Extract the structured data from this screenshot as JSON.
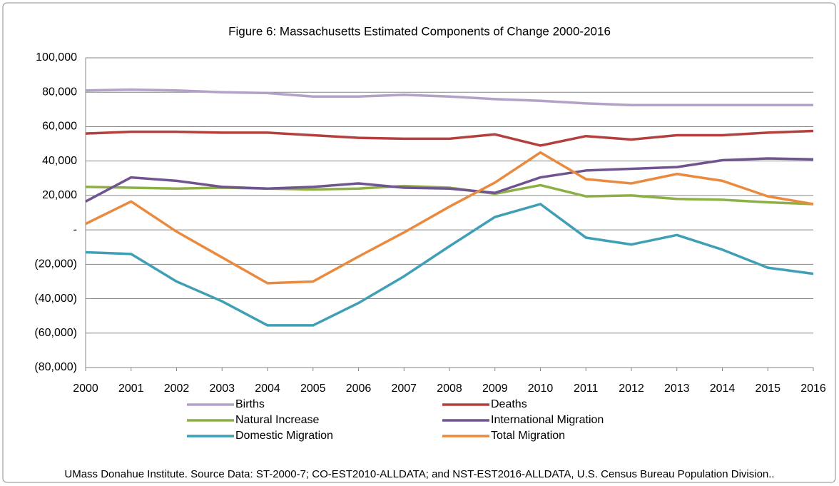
{
  "chart_data": {
    "type": "line",
    "title": "Figure 6:  Massachusetts Estimated Components of Change 2000-2016",
    "source": "UMass Donahue Institute. Source Data: ST-2000-7; CO-EST2010-ALLDATA; and NST-EST2016-ALLDATA, U.S. Census Bureau Population Division..",
    "x": [
      2000,
      2001,
      2002,
      2003,
      2004,
      2005,
      2006,
      2007,
      2008,
      2009,
      2010,
      2011,
      2012,
      2013,
      2014,
      2015,
      2016
    ],
    "xlim": [
      2000,
      2016
    ],
    "xticks": [
      2000,
      2001,
      2002,
      2003,
      2004,
      2005,
      2006,
      2007,
      2008,
      2009,
      2010,
      2011,
      2012,
      2013,
      2014,
      2015,
      2016
    ],
    "ylim": [
      -80000,
      100000
    ],
    "yticks": [
      {
        "value": -80000,
        "label": "(80,000)"
      },
      {
        "value": -60000,
        "label": "(60,000)"
      },
      {
        "value": -40000,
        "label": "(40,000)"
      },
      {
        "value": -20000,
        "label": "(20,000)"
      },
      {
        "value": 0,
        "label": "-"
      },
      {
        "value": 20000,
        "label": "20,000"
      },
      {
        "value": 40000,
        "label": "40,000"
      },
      {
        "value": 60000,
        "label": "60,000"
      },
      {
        "value": 80000,
        "label": "80,000"
      },
      {
        "value": 100000,
        "label": "100,000"
      }
    ],
    "grid": true,
    "legend": "bottom",
    "series": [
      {
        "name": "Births",
        "color": "#b3a2c7",
        "values": [
          81000,
          81500,
          81000,
          80000,
          79500,
          77500,
          77500,
          78500,
          77500,
          76000,
          75000,
          73500,
          72500,
          72500,
          72500,
          72500,
          72500
        ]
      },
      {
        "name": "Deaths",
        "color": "#b3403d",
        "values": [
          56000,
          57000,
          57000,
          56500,
          56500,
          55000,
          53500,
          53000,
          53000,
          55500,
          49000,
          54500,
          52500,
          55000,
          55000,
          56500,
          57500
        ]
      },
      {
        "name": "Natural Increase",
        "color": "#8db046",
        "values": [
          25000,
          24500,
          24000,
          24500,
          24000,
          23500,
          24000,
          25500,
          24500,
          21000,
          26000,
          19500,
          20000,
          18000,
          17500,
          16000,
          15000
        ]
      },
      {
        "name": "International Migration",
        "color": "#6f5490",
        "values": [
          16500,
          30500,
          28500,
          25000,
          24000,
          25000,
          27000,
          24500,
          24000,
          21500,
          30500,
          34500,
          35500,
          36500,
          40500,
          41500,
          41000
        ]
      },
      {
        "name": "Domestic Migration",
        "color": "#3f9fb5",
        "values": [
          -13000,
          -14000,
          -30000,
          -41500,
          -55500,
          -55500,
          -42500,
          -27000,
          -9500,
          7500,
          15000,
          -4500,
          -8500,
          -3000,
          -11500,
          -22000,
          -25500
        ]
      },
      {
        "name": "Total Migration",
        "color": "#ea8a3f",
        "values": [
          3500,
          16500,
          -1000,
          -16000,
          -31000,
          -30000,
          -15500,
          -1500,
          13500,
          27500,
          45000,
          29500,
          27000,
          32500,
          28500,
          19500,
          15000
        ]
      }
    ]
  }
}
